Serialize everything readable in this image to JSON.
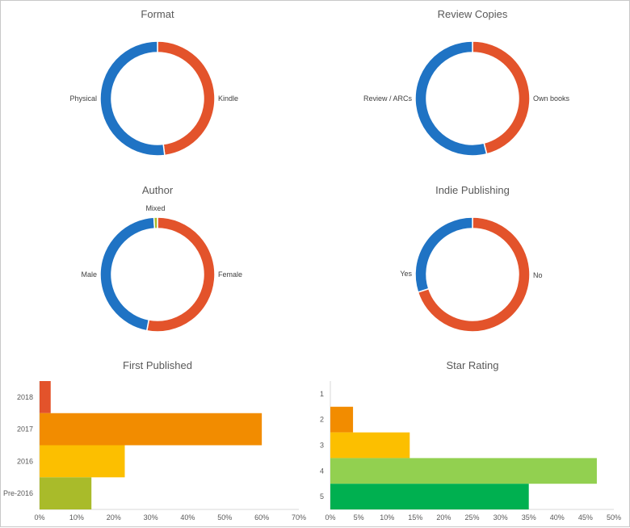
{
  "chart_data": [
    {
      "id": "format",
      "type": "pie",
      "donut": true,
      "title": "Format",
      "slices": [
        {
          "label": "Kindle",
          "value": 48,
          "color": "#e3532b"
        },
        {
          "label": "Physical",
          "value": 52,
          "color": "#1f73c4"
        }
      ]
    },
    {
      "id": "review-copies",
      "type": "pie",
      "donut": true,
      "title": "Review Copies",
      "slices": [
        {
          "label": "Own books",
          "value": 46,
          "color": "#e3532b"
        },
        {
          "label": "Review / ARCs",
          "value": 54,
          "color": "#1f73c4"
        }
      ]
    },
    {
      "id": "author",
      "type": "pie",
      "donut": true,
      "title": "Author",
      "slices": [
        {
          "label": "Female",
          "value": 53,
          "color": "#e3532b"
        },
        {
          "label": "Male",
          "value": 46,
          "color": "#1f73c4"
        },
        {
          "label": "Mixed",
          "value": 1,
          "color": "#a9bb2a"
        }
      ]
    },
    {
      "id": "indie-publishing",
      "type": "pie",
      "donut": true,
      "title": "Indie Publishing",
      "slices": [
        {
          "label": "No",
          "value": 70,
          "color": "#e3532b"
        },
        {
          "label": "Yes",
          "value": 30,
          "color": "#1f73c4"
        }
      ]
    },
    {
      "id": "first-published",
      "type": "bar",
      "orientation": "horizontal",
      "title": "First Published",
      "categories": [
        "2018",
        "2017",
        "2016",
        "Pre-2016"
      ],
      "values": [
        3,
        60,
        23,
        14
      ],
      "colors": [
        "#e3532b",
        "#f28c00",
        "#fcbf00",
        "#a9bb2a"
      ],
      "xlim": [
        0,
        70
      ],
      "xticks": [
        "0%",
        "10%",
        "20%",
        "30%",
        "40%",
        "50%",
        "60%",
        "70%"
      ]
    },
    {
      "id": "star-rating",
      "type": "bar",
      "orientation": "horizontal",
      "title": "Star Rating",
      "categories": [
        "1",
        "2",
        "3",
        "4",
        "5"
      ],
      "values": [
        0,
        4,
        14,
        47,
        35
      ],
      "colors": [
        "#e3532b",
        "#f28c00",
        "#fcbf00",
        "#92d050",
        "#00b050"
      ],
      "xlim": [
        0,
        50
      ],
      "xticks": [
        "0%",
        "5%",
        "10%",
        "15%",
        "20%",
        "25%",
        "30%",
        "35%",
        "40%",
        "45%",
        "50%"
      ]
    }
  ]
}
